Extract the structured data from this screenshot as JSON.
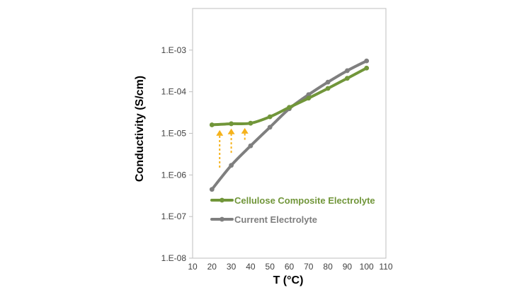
{
  "chart_data": {
    "type": "line",
    "title": "",
    "xlabel": "T (°C)",
    "ylabel": "Conductivity (S/cm)",
    "x_scale": "linear",
    "y_scale": "log",
    "xlim": [
      10,
      110
    ],
    "ylim": [
      1e-08,
      0.01
    ],
    "x_ticks": [
      "10",
      "20",
      "30",
      "40",
      "50",
      "60",
      "70",
      "80",
      "90",
      "100",
      "110"
    ],
    "y_ticks": [
      {
        "label": "1.E-08",
        "value": 1e-08
      },
      {
        "label": "1.E-07",
        "value": 1e-07
      },
      {
        "label": "1.E-06",
        "value": 1e-06
      },
      {
        "label": "1.E-05",
        "value": 1e-05
      },
      {
        "label": "1.E-04",
        "value": 0.0001
      },
      {
        "label": "1.E-03",
        "value": 0.001
      }
    ],
    "grid": false,
    "legend_position": "bottom-left",
    "series": [
      {
        "name": "Cellulose Composite Electrolyte",
        "color": "#71963a",
        "x": [
          20,
          30,
          40,
          50,
          60,
          70,
          80,
          90,
          100
        ],
        "y": [
          1.6e-05,
          1.7e-05,
          1.75e-05,
          2.5e-05,
          4.2e-05,
          7e-05,
          0.00012,
          0.00021,
          0.00037
        ]
      },
      {
        "name": "Current Electrolyte",
        "color": "#7f7f7f",
        "x": [
          20,
          30,
          40,
          50,
          60,
          70,
          80,
          90,
          100
        ],
        "y": [
          4.5e-07,
          1.7e-06,
          5e-06,
          1.4e-05,
          3.9e-05,
          8.5e-05,
          0.00017,
          0.00032,
          0.00055
        ]
      }
    ],
    "annotations": [
      {
        "type": "arrow",
        "color": "#f5b21b",
        "x": 24,
        "from": 1.5e-06,
        "to": 1.2e-05
      },
      {
        "type": "arrow",
        "color": "#f5b21b",
        "x": 30,
        "from": 3.4e-06,
        "to": 1.3e-05
      },
      {
        "type": "arrow",
        "color": "#f5b21b",
        "x": 37,
        "from": 7e-06,
        "to": 1.35e-05
      }
    ]
  }
}
